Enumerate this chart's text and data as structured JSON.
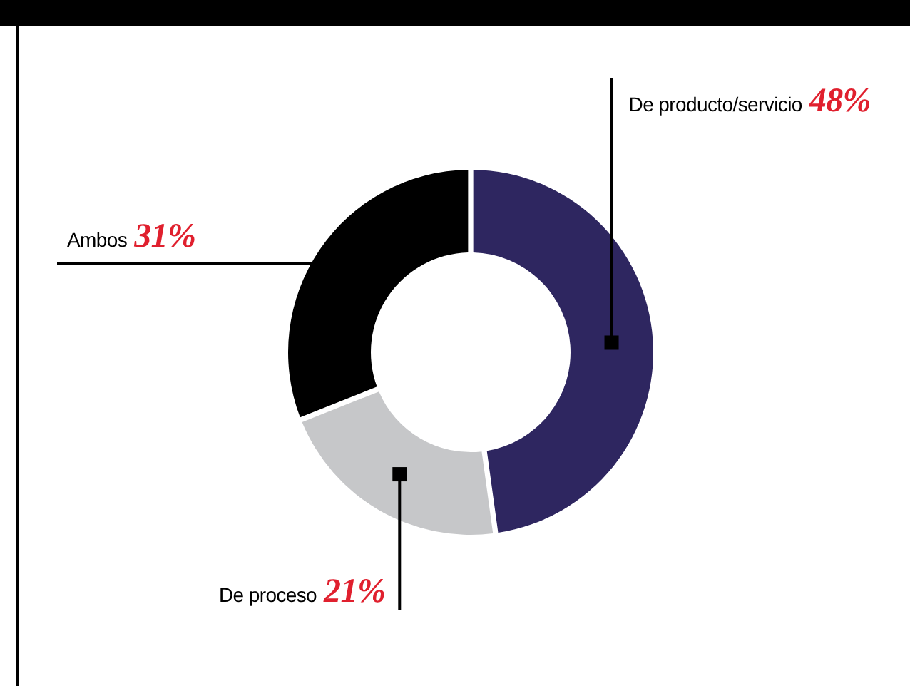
{
  "chart_data": {
    "type": "donut",
    "categories": [
      "De producto/servicio",
      "De proceso",
      "Ambos"
    ],
    "values": [
      48,
      21,
      31
    ],
    "value_labels": [
      "48%",
      "21%",
      "31%"
    ],
    "colors": [
      "#2e2660",
      "#c6c7c9",
      "#000000"
    ]
  }
}
